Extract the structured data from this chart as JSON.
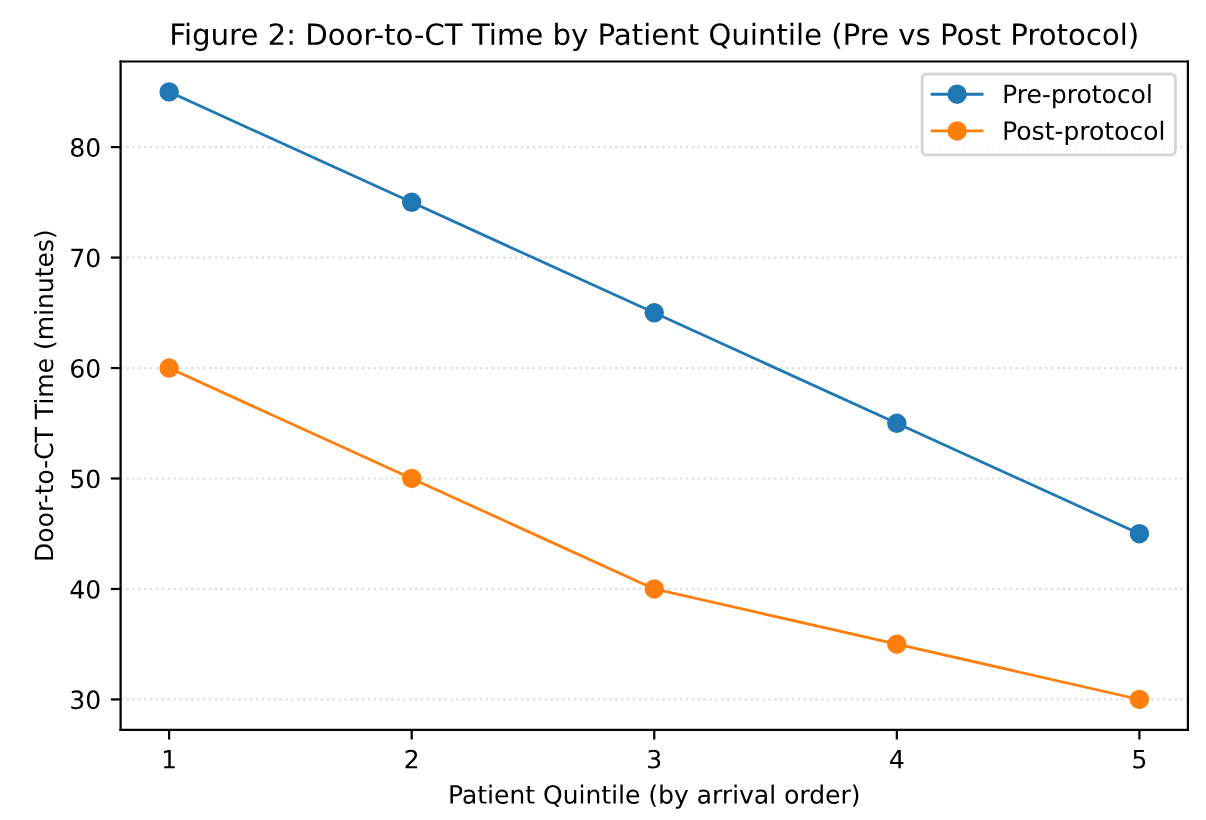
{
  "chart_data": {
    "type": "line",
    "title": "Figure 2: Door-to-CT Time by Patient Quintile (Pre vs Post Protocol)",
    "xlabel": "Patient Quintile (by arrival order)",
    "ylabel": "Door-to-CT Time (minutes)",
    "x": [
      1,
      2,
      3,
      4,
      5
    ],
    "series": [
      {
        "name": "Pre-protocol",
        "color": "#1f77b4",
        "values": [
          85,
          75,
          65,
          55,
          45
        ]
      },
      {
        "name": "Post-protocol",
        "color": "#ff7f0e",
        "values": [
          60,
          50,
          40,
          35,
          30
        ]
      }
    ],
    "xlim": [
      0.8,
      5.2
    ],
    "xticks": [
      1,
      2,
      3,
      4,
      5
    ],
    "ylim": [
      27.25,
      87.75
    ],
    "yticks": [
      30,
      40,
      50,
      60,
      70,
      80
    ],
    "grid": "y",
    "legend": "top right",
    "marker": "circle",
    "line_style": "solid"
  }
}
